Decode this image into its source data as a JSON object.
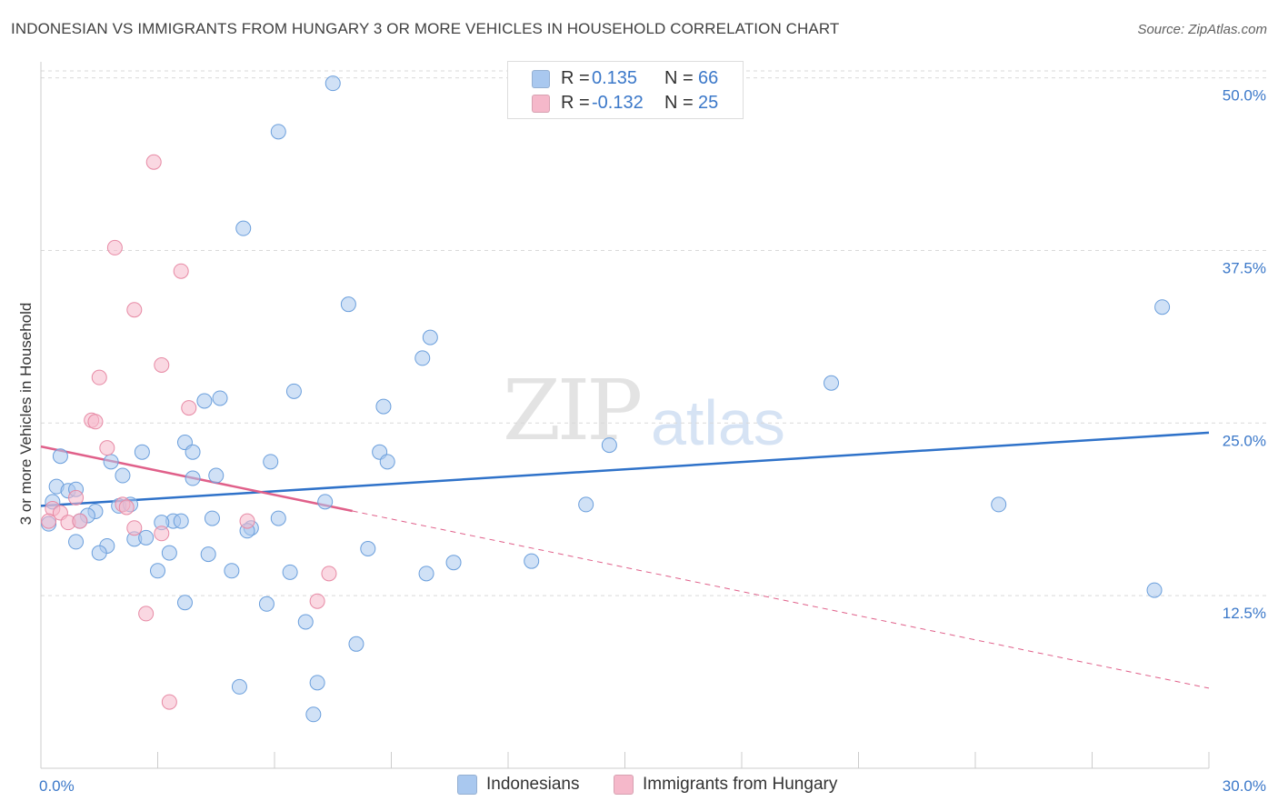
{
  "title": "INDONESIAN VS IMMIGRANTS FROM HUNGARY 3 OR MORE VEHICLES IN HOUSEHOLD CORRELATION CHART",
  "source": "Source: ZipAtlas.com",
  "watermark": {
    "part1": "ZIP",
    "part2": "atlas"
  },
  "legend_top": {
    "rows": [
      {
        "r_label": "R =",
        "r_value": "0.135",
        "n_label": "N =",
        "n_value": "66",
        "color": "#a9c8ef"
      },
      {
        "r_label": "R =",
        "r_value": "-0.132",
        "n_label": "N =",
        "n_value": "25",
        "color": "#f5b8ca"
      }
    ]
  },
  "legend_bottom": {
    "items": [
      {
        "label": "Indonesians",
        "color": "#a9c8ef"
      },
      {
        "label": "Immigrants from Hungary",
        "color": "#f5b8ca"
      }
    ]
  },
  "chart_data": {
    "type": "scatter",
    "title": "INDONESIAN VS IMMIGRANTS FROM HUNGARY 3 OR MORE VEHICLES IN HOUSEHOLD CORRELATION CHART",
    "xlabel": "",
    "ylabel": "3 or more Vehicles in Household",
    "xlim": [
      0,
      30
    ],
    "ylim": [
      0,
      50.5
    ],
    "x_tick_labels": [
      "0.0%",
      "30.0%"
    ],
    "y_ticks": [
      12.5,
      25.0,
      37.5,
      50.0
    ],
    "y_tick_labels": [
      "12.5%",
      "25.0%",
      "37.5%",
      "50.0%"
    ],
    "grid": true,
    "series": [
      {
        "name": "Indonesians",
        "color": "#a9c8ef",
        "stroke": "#6b9fdc",
        "trend": {
          "x0": 0,
          "y0": 19.0,
          "x1": 30,
          "y1": 24.3,
          "color": "#2f72c9",
          "dashed_from": null
        },
        "points": [
          [
            7.5,
            49.6
          ],
          [
            6.1,
            46.1
          ],
          [
            5.2,
            39.1
          ],
          [
            7.9,
            33.6
          ],
          [
            9.8,
            29.7
          ],
          [
            10.0,
            31.2
          ],
          [
            6.5,
            27.3
          ],
          [
            4.2,
            26.6
          ],
          [
            4.6,
            26.8
          ],
          [
            8.8,
            26.2
          ],
          [
            8.7,
            22.9
          ],
          [
            8.9,
            22.2
          ],
          [
            14.6,
            23.4
          ],
          [
            20.3,
            27.9
          ],
          [
            28.8,
            33.4
          ],
          [
            3.7,
            23.6
          ],
          [
            3.9,
            22.9
          ],
          [
            2.6,
            22.9
          ],
          [
            0.5,
            22.6
          ],
          [
            1.8,
            22.2
          ],
          [
            5.9,
            22.2
          ],
          [
            2.1,
            21.2
          ],
          [
            3.9,
            21.0
          ],
          [
            4.5,
            21.2
          ],
          [
            0.4,
            20.4
          ],
          [
            0.7,
            20.1
          ],
          [
            0.9,
            20.2
          ],
          [
            0.3,
            19.3
          ],
          [
            2.0,
            19.0
          ],
          [
            2.3,
            19.1
          ],
          [
            7.3,
            19.3
          ],
          [
            14.0,
            19.1
          ],
          [
            24.6,
            19.1
          ],
          [
            1.4,
            18.6
          ],
          [
            1.2,
            18.3
          ],
          [
            1.0,
            17.9
          ],
          [
            3.4,
            17.9
          ],
          [
            3.1,
            17.8
          ],
          [
            3.6,
            17.9
          ],
          [
            4.4,
            18.1
          ],
          [
            6.1,
            18.1
          ],
          [
            5.4,
            17.4
          ],
          [
            5.3,
            17.2
          ],
          [
            2.4,
            16.6
          ],
          [
            2.7,
            16.7
          ],
          [
            0.9,
            16.4
          ],
          [
            1.7,
            16.1
          ],
          [
            1.5,
            15.6
          ],
          [
            3.3,
            15.6
          ],
          [
            4.3,
            15.5
          ],
          [
            8.4,
            15.9
          ],
          [
            10.6,
            14.9
          ],
          [
            12.6,
            15.0
          ],
          [
            3.0,
            14.3
          ],
          [
            4.9,
            14.3
          ],
          [
            6.4,
            14.2
          ],
          [
            9.9,
            14.1
          ],
          [
            3.7,
            12.0
          ],
          [
            5.8,
            11.9
          ],
          [
            6.8,
            10.6
          ],
          [
            8.1,
            9.0
          ],
          [
            28.6,
            12.9
          ],
          [
            7.1,
            6.2
          ],
          [
            5.1,
            5.9
          ],
          [
            7.0,
            3.9
          ],
          [
            0.2,
            17.7
          ]
        ]
      },
      {
        "name": "Immigrants from Hungary",
        "color": "#f5b8ca",
        "stroke": "#e78aa5",
        "trend": {
          "x0": 0,
          "y0": 23.3,
          "x1": 30,
          "y1": 5.8,
          "color": "#e0608a",
          "dashed_from": 8.0
        },
        "points": [
          [
            2.9,
            43.9
          ],
          [
            1.9,
            37.7
          ],
          [
            3.6,
            36.0
          ],
          [
            2.4,
            33.2
          ],
          [
            3.1,
            29.2
          ],
          [
            1.5,
            28.3
          ],
          [
            1.3,
            25.2
          ],
          [
            1.4,
            25.1
          ],
          [
            3.8,
            26.1
          ],
          [
            1.7,
            23.2
          ],
          [
            0.9,
            19.6
          ],
          [
            0.3,
            18.8
          ],
          [
            0.5,
            18.5
          ],
          [
            2.1,
            19.1
          ],
          [
            0.2,
            17.9
          ],
          [
            0.7,
            17.8
          ],
          [
            1.0,
            17.9
          ],
          [
            2.4,
            17.4
          ],
          [
            2.2,
            18.9
          ],
          [
            5.3,
            17.9
          ],
          [
            3.1,
            17.0
          ],
          [
            7.4,
            14.1
          ],
          [
            7.1,
            12.1
          ],
          [
            2.7,
            11.2
          ],
          [
            3.3,
            4.8
          ]
        ]
      }
    ]
  }
}
